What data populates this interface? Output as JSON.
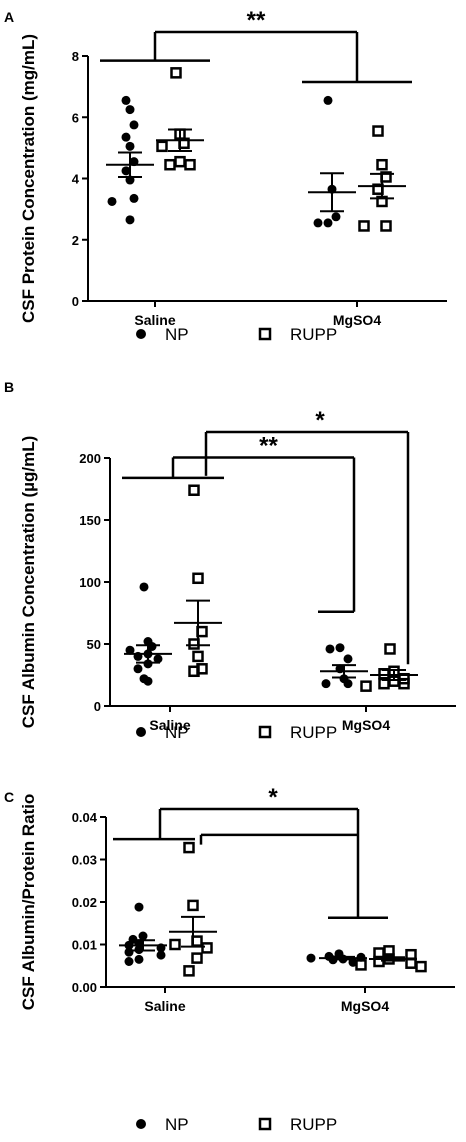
{
  "chart_data": [
    {
      "type": "scatter",
      "panel": "A",
      "ylabel": "CSF Protein Concentration (mg/mL)",
      "ylim": [
        0,
        8
      ],
      "yticks": [
        0,
        2,
        4,
        6,
        8
      ],
      "categories": [
        "Saline",
        "MgSO4"
      ],
      "series": [
        {
          "name": "NP",
          "marker": "filled-circle",
          "points": [
            {
              "cat": "Saline",
              "values": [
                6.55,
                6.25,
                5.75,
                5.35,
                5.05,
                4.55,
                4.25,
                3.95,
                3.35,
                3.25,
                2.65
              ],
              "mean": 4.45,
              "sem": 0.4
            },
            {
              "cat": "MgSO4",
              "values": [
                6.55,
                3.65,
                2.75,
                2.55,
                2.55
              ],
              "mean": 3.55,
              "sem": 0.62
            }
          ]
        },
        {
          "name": "RUPP",
          "marker": "open-square",
          "points": [
            {
              "cat": "Saline",
              "values": [
                7.45,
                5.45,
                5.15,
                5.05,
                4.55,
                4.45,
                4.45
              ],
              "mean": 5.25,
              "sem": 0.35
            },
            {
              "cat": "MgSO4",
              "values": [
                5.55,
                4.45,
                4.05,
                3.65,
                3.25,
                2.45,
                2.45
              ],
              "mean": 3.75,
              "sem": 0.4
            }
          ]
        }
      ],
      "significance": [
        {
          "label": "**",
          "pair_groups": [
            [
              "Saline NP",
              "Saline RUPP"
            ],
            [
              "MgSO4 NP",
              "MgSO4 RUPP"
            ]
          ],
          "levels": [
            7.85,
            7.15
          ],
          "top": 8.75
        }
      ]
    },
    {
      "type": "scatter",
      "panel": "B",
      "ylabel": "CSF Albumin Concentration (µg/mL)",
      "ylim": [
        0,
        200
      ],
      "yticks": [
        0,
        50,
        100,
        150,
        200
      ],
      "categories": [
        "Saline",
        "MgSO4"
      ],
      "series": [
        {
          "name": "NP",
          "marker": "filled-circle",
          "points": [
            {
              "cat": "Saline",
              "values": [
                96,
                52,
                48,
                45,
                42,
                40,
                38,
                34,
                30,
                22,
                20
              ],
              "mean": 42,
              "sem": 7
            },
            {
              "cat": "MgSO4",
              "values": [
                47,
                46,
                38,
                30,
                22,
                18,
                18
              ],
              "mean": 28,
              "sem": 5
            }
          ]
        },
        {
          "name": "RUPP",
          "marker": "open-square",
          "points": [
            {
              "cat": "Saline",
              "values": [
                174,
                103,
                60,
                50,
                40,
                30,
                28
              ],
              "mean": 67,
              "sem": 18
            },
            {
              "cat": "MgSO4",
              "values": [
                46,
                28,
                26,
                22,
                20,
                18,
                18,
                16
              ],
              "mean": 25,
              "sem": 4
            }
          ]
        }
      ],
      "significance": [
        {
          "label": "**",
          "from": [
            "Saline NP",
            "Saline RUPP"
          ],
          "to": [
            "MgSO4 NP"
          ],
          "levels": [
            184,
            76
          ],
          "top": 194
        },
        {
          "label": "*",
          "from": [
            "Saline RUPP"
          ],
          "to": [
            "MgSO4 RUPP"
          ],
          "levels": [
            194
          ],
          "top": 212
        }
      ]
    },
    {
      "type": "scatter",
      "panel": "C",
      "ylabel": "CSF Albumin/Protein Ratio",
      "ylim": [
        0,
        0.04
      ],
      "yticks": [
        "0.00",
        "0.01",
        "0.02",
        "0.03",
        "0.04"
      ],
      "categories": [
        "Saline",
        "MgSO4"
      ],
      "series": [
        {
          "name": "NP",
          "marker": "filled-circle",
          "points": [
            {
              "cat": "Saline",
              "values": [
                0.0188,
                0.012,
                0.0112,
                0.0102,
                0.0098,
                0.0092,
                0.0088,
                0.0082,
                0.0075,
                0.0065,
                0.006
              ],
              "mean": 0.0098,
              "sem": 0.0012
            },
            {
              "cat": "MgSO4",
              "values": [
                0.0078,
                0.0072,
                0.007,
                0.0068,
                0.0066,
                0.0064,
                0.0058
              ],
              "mean": 0.0068,
              "sem": 0.0003
            }
          ]
        },
        {
          "name": "RUPP",
          "marker": "open-square",
          "points": [
            {
              "cat": "Saline",
              "values": [
                0.0328,
                0.0192,
                0.0108,
                0.01,
                0.0092,
                0.0068,
                0.0038
              ],
              "mean": 0.013,
              "sem": 0.0035
            },
            {
              "cat": "MgSO4",
              "values": [
                0.0085,
                0.008,
                0.0076,
                0.0066,
                0.006,
                0.0056,
                0.0052,
                0.0048
              ],
              "mean": 0.0066,
              "sem": 0.0004
            }
          ]
        }
      ],
      "significance": [
        {
          "label": "*",
          "from": [
            "Saline NP",
            "Saline RUPP"
          ],
          "to": [
            "MgSO4"
          ],
          "levels": [
            0.0348,
            0.0163
          ],
          "top": 0.04
        }
      ]
    }
  ],
  "legend": {
    "np_label": "NP",
    "rupp_label": "RUPP"
  },
  "panel_letters": [
    "A",
    "B",
    "C"
  ],
  "colors": {
    "ink": "#000000",
    "background": "#ffffff"
  }
}
